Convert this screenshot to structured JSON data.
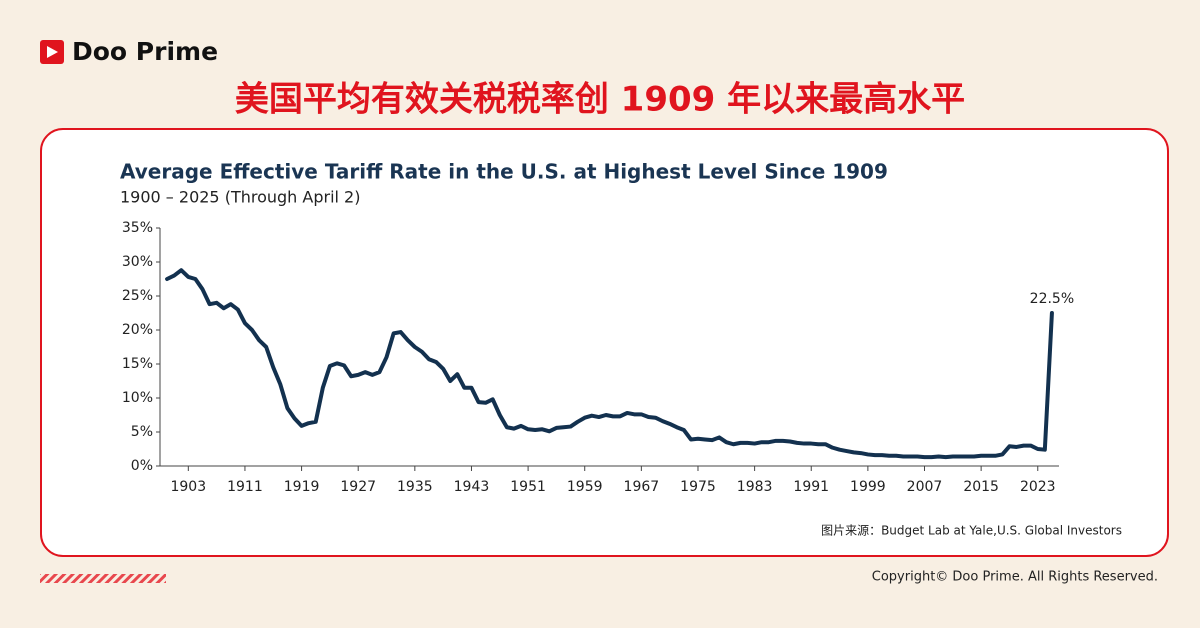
{
  "brand": "Doo Prime",
  "headline": "美国平均有效关税税率创 1909 年以来最高水平",
  "source": "图片来源：Budget Lab at Yale,U.S. Global Investors",
  "copyright": "Copyright© Doo Prime. All Rights Reserved.",
  "chart_data": {
    "type": "line",
    "title": "Average Effective Tariff Rate in the U.S. at Highest Level Since 1909",
    "subtitle": "1900 – 2025 (Through April 2)",
    "color": "#13314f",
    "annotation": "22.5%",
    "x": [
      1900,
      1901,
      1902,
      1903,
      1904,
      1905,
      1906,
      1907,
      1908,
      1909,
      1910,
      1911,
      1912,
      1913,
      1914,
      1915,
      1916,
      1917,
      1918,
      1919,
      1920,
      1921,
      1922,
      1923,
      1924,
      1925,
      1926,
      1927,
      1928,
      1929,
      1930,
      1931,
      1932,
      1933,
      1934,
      1935,
      1936,
      1937,
      1938,
      1939,
      1940,
      1941,
      1942,
      1943,
      1944,
      1945,
      1946,
      1947,
      1948,
      1949,
      1950,
      1951,
      1952,
      1953,
      1954,
      1955,
      1956,
      1957,
      1958,
      1959,
      1960,
      1961,
      1962,
      1963,
      1964,
      1965,
      1966,
      1967,
      1968,
      1969,
      1970,
      1971,
      1972,
      1973,
      1974,
      1975,
      1976,
      1977,
      1978,
      1979,
      1980,
      1981,
      1982,
      1983,
      1984,
      1985,
      1986,
      1987,
      1988,
      1989,
      1990,
      1991,
      1992,
      1993,
      1994,
      1995,
      1996,
      1997,
      1998,
      1999,
      2000,
      2001,
      2002,
      2003,
      2004,
      2005,
      2006,
      2007,
      2008,
      2009,
      2010,
      2011,
      2012,
      2013,
      2014,
      2015,
      2016,
      2017,
      2018,
      2019,
      2020,
      2021,
      2022,
      2023,
      2024,
      2025
    ],
    "values": [
      27.5,
      28,
      28.8,
      27.8,
      27.5,
      26,
      23.8,
      24,
      23.2,
      23.8,
      23,
      21,
      20,
      18.5,
      17.5,
      14.5,
      12,
      8.5,
      7,
      5.9,
      6.3,
      6.5,
      11.5,
      14.7,
      15.1,
      14.8,
      13.2,
      13.4,
      13.8,
      13.4,
      13.8,
      16,
      19.5,
      19.7,
      18.5,
      17.5,
      16.8,
      15.7,
      15.3,
      14.3,
      12.5,
      13.5,
      11.5,
      11.5,
      9.4,
      9.3,
      9.8,
      7.5,
      5.7,
      5.5,
      5.9,
      5.4,
      5.3,
      5.4,
      5.1,
      5.6,
      5.7,
      5.8,
      6.5,
      7.1,
      7.4,
      7.2,
      7.5,
      7.3,
      7.3,
      7.8,
      7.6,
      7.6,
      7.2,
      7.1,
      6.6,
      6.2,
      5.7,
      5.3,
      3.9,
      4,
      3.9,
      3.8,
      4.2,
      3.5,
      3.2,
      3.4,
      3.4,
      3.3,
      3.5,
      3.5,
      3.7,
      3.7,
      3.6,
      3.4,
      3.3,
      3.3,
      3.2,
      3.2,
      2.7,
      2.4,
      2.2,
      2,
      1.9,
      1.7,
      1.6,
      1.6,
      1.5,
      1.5,
      1.4,
      1.4,
      1.4,
      1.3,
      1.3,
      1.4,
      1.3,
      1.4,
      1.4,
      1.4,
      1.4,
      1.5,
      1.5,
      1.5,
      1.7,
      2.9,
      2.8,
      3,
      3,
      2.5,
      2.4,
      22.5
    ],
    "xlim": [
      1899,
      2026
    ],
    "xticks": [
      1903,
      1911,
      1919,
      1927,
      1935,
      1943,
      1951,
      1959,
      1967,
      1975,
      1983,
      1991,
      1999,
      2007,
      2015,
      2023
    ],
    "ylim": [
      0,
      35
    ],
    "yticks": [
      {
        "value": 0,
        "label": "0%"
      },
      {
        "value": 5,
        "label": "5%"
      },
      {
        "value": 10,
        "label": "10%"
      },
      {
        "value": 15,
        "label": "15%"
      },
      {
        "value": 20,
        "label": "20%"
      },
      {
        "value": 25,
        "label": "25%"
      },
      {
        "value": 30,
        "label": "30%"
      },
      {
        "value": 35,
        "label": "35%"
      }
    ]
  }
}
